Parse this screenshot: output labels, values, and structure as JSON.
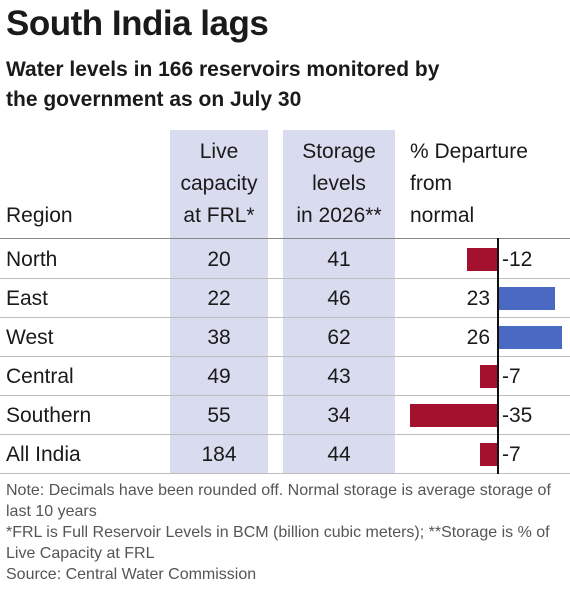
{
  "title": "South India lags",
  "subtitle": [
    "Water levels in 166 reservoirs monitored by",
    "the government as on July 30"
  ],
  "table": {
    "header": [
      [
        "Region"
      ],
      [
        "Live",
        "capacity",
        "at FRL*"
      ],
      [
        "Storage",
        "levels",
        "in 2026**"
      ],
      [
        "% Departure",
        "from",
        "normal"
      ]
    ],
    "rows": [
      [
        "North",
        20,
        41,
        -12
      ],
      [
        "East",
        22,
        46,
        23
      ],
      [
        "West",
        38,
        62,
        26
      ],
      [
        "Central",
        49,
        43,
        -7
      ],
      [
        "Southern",
        55,
        34,
        -35
      ],
      [
        "All India",
        184,
        44,
        -7
      ]
    ],
    "positive_color": "#4a69c2",
    "negative_color": "#a3112e"
  },
  "notes": [
    "Note: Decimals have been rounded off. Normal storage is average storage of last 10 years",
    "*FRL is Full Reservoir Levels in BCM (billion cubic meters); **Storage is % of Live Capacity at FRL",
    "Source: Central Water Commission"
  ]
}
